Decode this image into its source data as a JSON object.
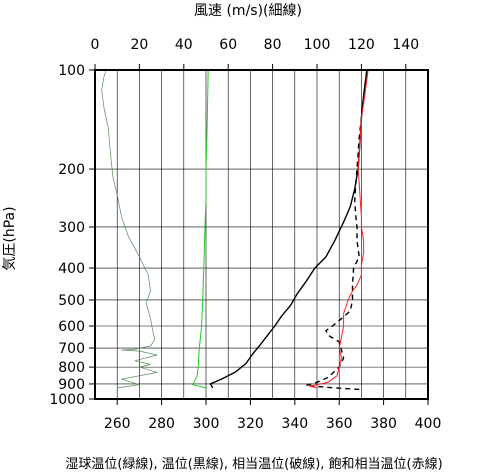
{
  "chart_data": {
    "type": "line",
    "title": "風速 (m/s)(細線)",
    "xlabel": "湿球温位(緑線), 温位(黒線), 相当温位(破線), 飽和相当温位(赤線)",
    "ylabel": "気圧(hPa)",
    "y_scale": "log",
    "y_reversed": true,
    "ylim": [
      1000,
      100
    ],
    "y_ticks": [
      100,
      200,
      300,
      400,
      500,
      600,
      700,
      800,
      900,
      1000
    ],
    "x_bottom": {
      "lim": [
        250,
        400
      ],
      "ticks": [
        260,
        280,
        300,
        320,
        340,
        360,
        380,
        400
      ]
    },
    "x_top": {
      "lim": [
        0,
        150
      ],
      "ticks": [
        0,
        20,
        40,
        60,
        80,
        100,
        120,
        140
      ]
    },
    "grid": true,
    "series": [
      {
        "key": "wind",
        "axis": "top",
        "color": "#5a8a5a",
        "width": 0.7,
        "dash": "",
        "points": [
          [
            10,
            925
          ],
          [
            20,
            905
          ],
          [
            12,
            870
          ],
          [
            28,
            830
          ],
          [
            20,
            800
          ],
          [
            25,
            785
          ],
          [
            18,
            765
          ],
          [
            28,
            735
          ],
          [
            20,
            715
          ],
          [
            12,
            710
          ],
          [
            18,
            705
          ],
          [
            25,
            690
          ],
          [
            27,
            660
          ],
          [
            26,
            620
          ],
          [
            25,
            570
          ],
          [
            23,
            510
          ],
          [
            25,
            470
          ],
          [
            24,
            420
          ],
          [
            20,
            370
          ],
          [
            15,
            320
          ],
          [
            12,
            280
          ],
          [
            10,
            240
          ],
          [
            8,
            210
          ],
          [
            7,
            180
          ],
          [
            6,
            150
          ],
          [
            4,
            130
          ],
          [
            3,
            115
          ],
          [
            4,
            105
          ],
          [
            5,
            100
          ]
        ]
      },
      {
        "key": "wet_bulb_theta",
        "axis": "bottom",
        "color": "#22cc22",
        "width": 1.0,
        "dash": "",
        "points": [
          [
            300,
            925
          ],
          [
            294,
            905
          ],
          [
            296,
            850
          ],
          [
            296.5,
            800
          ],
          [
            297,
            700
          ],
          [
            298,
            600
          ],
          [
            298.5,
            500
          ],
          [
            299,
            400
          ],
          [
            299.5,
            300
          ],
          [
            300,
            250
          ],
          [
            300,
            200
          ],
          [
            300.5,
            150
          ],
          [
            301,
            100
          ]
        ]
      },
      {
        "key": "theta",
        "axis": "bottom",
        "color": "#000000",
        "width": 1.4,
        "dash": "",
        "points": [
          [
            303,
            925
          ],
          [
            302,
            900
          ],
          [
            307,
            870
          ],
          [
            313,
            830
          ],
          [
            318,
            780
          ],
          [
            321,
            730
          ],
          [
            324,
            690
          ],
          [
            327,
            650
          ],
          [
            331,
            600
          ],
          [
            334,
            560
          ],
          [
            338,
            520
          ],
          [
            341,
            480
          ],
          [
            345,
            440
          ],
          [
            349,
            400
          ],
          [
            354,
            370
          ],
          [
            358,
            330
          ],
          [
            362,
            290
          ],
          [
            365,
            260
          ],
          [
            367,
            230
          ],
          [
            368.5,
            200
          ],
          [
            369,
            180
          ],
          [
            369.5,
            160
          ],
          [
            370,
            140
          ],
          [
            371,
            120
          ],
          [
            372.5,
            100
          ]
        ]
      },
      {
        "key": "theta_e",
        "axis": "bottom",
        "color": "#000000",
        "width": 1.4,
        "dash": "5,4",
        "points": [
          [
            369,
            935
          ],
          [
            358,
            925
          ],
          [
            345,
            910
          ],
          [
            350,
            890
          ],
          [
            355,
            860
          ],
          [
            360,
            800
          ],
          [
            362,
            750
          ],
          [
            361,
            710
          ],
          [
            360,
            670
          ],
          [
            355,
            640
          ],
          [
            354,
            620
          ],
          [
            357,
            600
          ],
          [
            361,
            570
          ],
          [
            365,
            540
          ],
          [
            366,
            500
          ],
          [
            366,
            450
          ],
          [
            366.5,
            400
          ],
          [
            369,
            370
          ],
          [
            368,
            330
          ],
          [
            368,
            300
          ],
          [
            367.5,
            280
          ],
          [
            367,
            250
          ],
          [
            367.5,
            220
          ],
          [
            368,
            200
          ],
          [
            368.5,
            180
          ],
          [
            369,
            160
          ],
          [
            370,
            140
          ],
          [
            371,
            120
          ],
          [
            372.5,
            100
          ]
        ]
      },
      {
        "key": "theta_es",
        "axis": "bottom",
        "color": "#ff2020",
        "width": 1.0,
        "dash": "",
        "points": [
          [
            350,
            925
          ],
          [
            347,
            915
          ],
          [
            355,
            890
          ],
          [
            359,
            850
          ],
          [
            360,
            800
          ],
          [
            361,
            750
          ],
          [
            360,
            700
          ],
          [
            361,
            650
          ],
          [
            362,
            600
          ],
          [
            362,
            550
          ],
          [
            364,
            500
          ],
          [
            366,
            470
          ],
          [
            368,
            450
          ],
          [
            370,
            420
          ],
          [
            370,
            390
          ],
          [
            371,
            360
          ],
          [
            371,
            330
          ],
          [
            370,
            300
          ],
          [
            370,
            280
          ],
          [
            369.5,
            250
          ],
          [
            369,
            220
          ],
          [
            368.5,
            200
          ],
          [
            369,
            180
          ],
          [
            369.5,
            160
          ],
          [
            370,
            140
          ],
          [
            371.5,
            120
          ],
          [
            373,
            100
          ]
        ]
      }
    ]
  }
}
